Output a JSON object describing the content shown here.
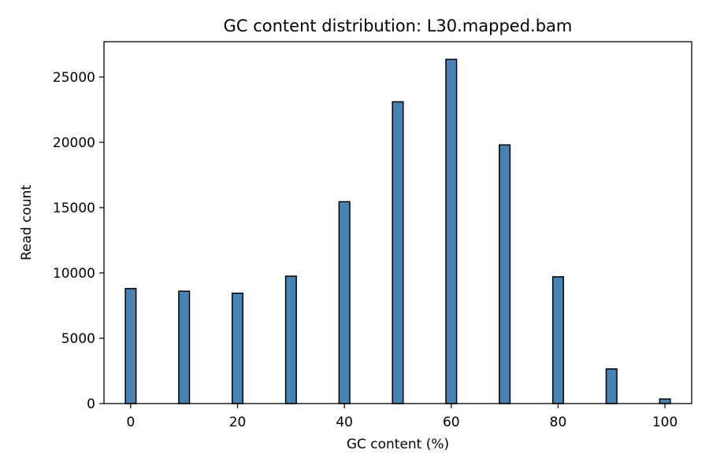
{
  "chart_data": {
    "type": "bar",
    "title": "GC content distribution: L30.mapped.bam",
    "xlabel": "GC content (%)",
    "ylabel": "Read count",
    "x": [
      0,
      10,
      20,
      30,
      40,
      50,
      60,
      70,
      80,
      90,
      100
    ],
    "values": [
      8800,
      8600,
      8450,
      9750,
      15450,
      23100,
      26350,
      19800,
      9700,
      2650,
      350
    ],
    "xlim": [
      -5,
      105
    ],
    "ylim": [
      0,
      27700
    ],
    "xticks": [
      0,
      20,
      40,
      60,
      80,
      100
    ],
    "yticks": [
      0,
      5000,
      10000,
      15000,
      20000,
      25000
    ],
    "bar_color": "#4682b4",
    "edge_color": "#000000",
    "grid": false,
    "legend": false
  }
}
